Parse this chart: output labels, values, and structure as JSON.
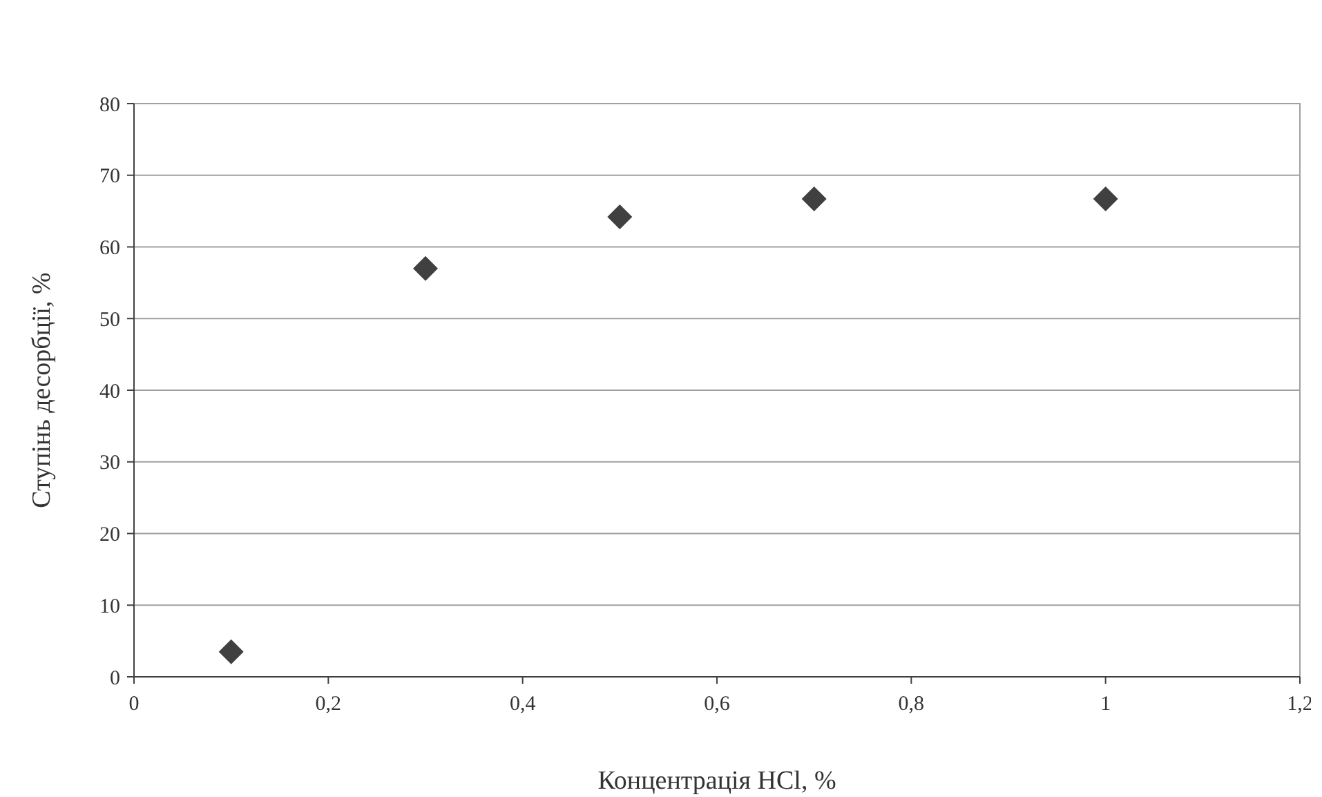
{
  "chart_data": {
    "type": "scatter",
    "xlabel": "Концентрація HCl, %",
    "ylabel": "Ступінь десорбції, %",
    "x": [
      0.1,
      0.3,
      0.5,
      0.7,
      1
    ],
    "series": [
      {
        "color": "#404040",
        "values": [
          3.5,
          57,
          64.2,
          66.7,
          66.7
        ]
      }
    ],
    "xlim": [
      0,
      1.2
    ],
    "ylim": [
      0,
      80
    ],
    "xticks": [
      0,
      {
        "value": 0.2,
        "label": "0,2"
      },
      {
        "value": 0.4,
        "label": "0,4"
      },
      {
        "value": 0.6,
        "label": "0,6"
      },
      {
        "value": 0.8,
        "label": "0,8"
      },
      1,
      {
        "value": 1.2,
        "label": "1,2"
      }
    ],
    "yticks": [
      0,
      10,
      20,
      30,
      40,
      50,
      60,
      70,
      80
    ],
    "grid": "y",
    "marker": "diamond"
  }
}
